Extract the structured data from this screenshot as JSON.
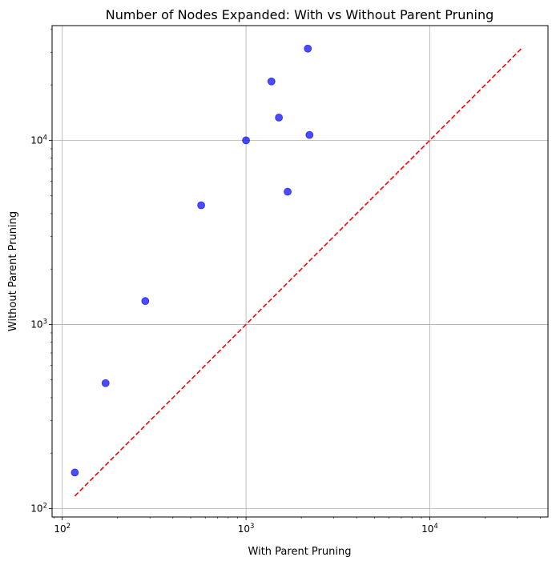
{
  "chart_data": {
    "type": "scatter",
    "title": "Number of Nodes Expanded: With vs Without Parent Pruning",
    "xlabel": "With Parent Pruning",
    "ylabel": "Without Parent Pruning",
    "xscale": "log",
    "yscale": "log",
    "xlim": [
      88,
      44000
    ],
    "ylim": [
      90,
      42000
    ],
    "grid": true,
    "major_ticks": [
      100,
      1000,
      10000
    ],
    "x_tick_labels": [
      {
        "value": 100,
        "base": "10",
        "exp": "2"
      },
      {
        "value": 1000,
        "base": "10",
        "exp": "3"
      },
      {
        "value": 10000,
        "base": "10",
        "exp": "4"
      }
    ],
    "y_tick_labels": [
      {
        "value": 100,
        "base": "10",
        "exp": "2"
      },
      {
        "value": 1000,
        "base": "10",
        "exp": "3"
      },
      {
        "value": 10000,
        "base": "10",
        "exp": "4"
      }
    ],
    "series": [
      {
        "kind": "points",
        "color": "#0000ff",
        "alpha": 0.7,
        "x": [
          117,
          172,
          283,
          570,
          1000,
          1375,
          1510,
          1685,
          2170,
          2215
        ],
        "y": [
          157,
          480,
          1340,
          4440,
          10000,
          20900,
          13300,
          5260,
          31500,
          10700
        ]
      },
      {
        "kind": "reference-line",
        "style": "dashed",
        "color": "#ff0000",
        "x": [
          117,
          31500
        ],
        "y": [
          117,
          31500
        ]
      }
    ]
  }
}
